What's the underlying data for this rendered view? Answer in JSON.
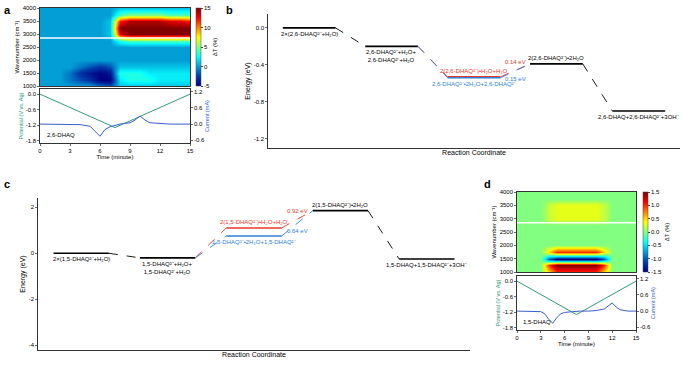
{
  "chart_data": [
    {
      "type": "heatmap",
      "panel": "a",
      "ylabel": "Wavenumber (cm⁻¹)",
      "tick_labels": "y",
      "xlim": [
        0,
        15
      ],
      "ylim": [
        1000,
        4000
      ],
      "yticks": [
        1000,
        1500,
        2000,
        2500,
        3000,
        3500,
        4000
      ],
      "x": [
        0,
        1,
        2,
        3,
        4,
        5,
        6,
        7,
        8,
        9,
        10,
        11,
        12,
        13,
        14,
        15
      ],
      "y": [
        1000,
        1250,
        1500,
        1750,
        2000,
        2250,
        2500,
        2750,
        3000,
        3250,
        3500,
        3750,
        4000
      ],
      "z": [
        [
          0,
          0,
          0,
          0,
          0,
          0,
          -1,
          -2,
          1,
          1,
          1,
          1,
          1,
          1,
          1,
          1
        ],
        [
          0,
          0,
          0,
          -1,
          -2,
          -3,
          -5,
          -5,
          2,
          3,
          3,
          3,
          2,
          2,
          2,
          2
        ],
        [
          0,
          0,
          0,
          -1,
          -3,
          -4,
          -5,
          -4,
          3,
          3,
          3,
          2,
          2,
          2,
          2,
          2
        ],
        [
          0,
          0,
          0,
          0,
          -1,
          -2,
          -3,
          -2,
          1,
          1,
          1,
          1,
          1,
          1,
          1,
          1
        ],
        [
          0,
          0,
          0,
          0,
          0,
          0,
          0,
          0,
          0,
          0,
          0,
          0,
          0,
          0,
          0,
          0
        ],
        [
          0,
          0,
          0,
          0,
          0,
          0,
          0,
          0,
          0,
          0,
          0,
          0,
          0,
          0,
          0,
          0
        ],
        [
          0,
          0,
          0,
          0,
          0,
          0,
          0,
          0,
          0,
          0,
          0,
          0,
          0,
          0,
          0,
          0
        ],
        [
          0,
          0,
          0,
          0,
          0,
          0,
          0,
          0,
          3,
          4,
          4,
          4,
          4,
          4,
          4,
          4
        ],
        [
          0,
          0,
          0,
          0,
          0,
          0,
          0,
          1,
          13,
          15,
          15,
          15,
          15,
          15,
          15,
          15
        ],
        [
          0,
          0,
          0,
          0,
          0,
          0,
          0,
          1,
          15,
          15,
          15,
          15,
          15,
          15,
          15,
          15
        ],
        [
          0,
          0,
          0,
          0,
          0,
          0,
          0,
          1,
          12,
          14,
          14,
          14,
          14,
          13,
          13,
          12
        ],
        [
          0,
          0,
          0,
          0,
          0,
          0,
          0,
          0,
          4,
          5,
          5,
          5,
          5,
          4,
          4,
          4
        ],
        [
          0,
          0,
          0,
          0,
          0,
          0,
          0,
          0,
          1,
          1,
          1,
          1,
          1,
          1,
          1,
          1
        ]
      ],
      "colorbar": {
        "title": "ΔT (%)",
        "range": [
          -5,
          15
        ],
        "ticks": [
          -5,
          0,
          5,
          10,
          15
        ]
      },
      "reference_line": 2850
    },
    {
      "type": "line",
      "annotation": "2,6-DHAQ",
      "xlabel": "Time (minute)",
      "xlim": [
        0,
        15
      ],
      "xticks": [
        0,
        3,
        6,
        9,
        12,
        15
      ],
      "ylabel": "Potential (V vs. Ag)",
      "ylim": [
        -1.9,
        0.2
      ],
      "yticks": [
        {
          "value": 0,
          "label": "0.0"
        },
        -0.6,
        -1.2,
        -1.8
      ],
      "y2label": "Current (mA)",
      "y2lim": [
        -0.7,
        1.3
      ],
      "y2ticks": [
        1.2,
        0.6,
        {
          "value": 0,
          "label": "0.0"
        },
        -0.6
      ],
      "series": [
        {
          "color": "#2e9a7e",
          "x": [
            0,
            7.5,
            15
          ],
          "values": [
            0,
            -1.3,
            0
          ]
        },
        {
          "color": "#3a5fcd",
          "axis": "y2",
          "x": [
            0,
            1,
            2,
            3,
            4,
            5,
            5.5,
            6,
            6.5,
            7,
            7.5,
            8,
            9,
            9.5,
            10,
            10.5,
            11,
            12,
            13,
            14,
            15
          ],
          "values": [
            0,
            0,
            0,
            0,
            -0.02,
            -0.08,
            -0.25,
            -0.45,
            -0.2,
            -0.1,
            -0.05,
            0,
            0.05,
            0.15,
            0.3,
            0.15,
            0.05,
            0.02,
            0,
            0,
            0
          ]
        }
      ]
    },
    {
      "type": "energy_diagram",
      "panel": "b",
      "xlabel": "Reaction Coordinate",
      "ylabel": "Energy (eV)",
      "tick_labels": "y",
      "ylim": [
        -1.3,
        0.15
      ],
      "yticks": [
        {
          "value": 0,
          "label": "0.0"
        },
        -0.4,
        -0.8,
        -1.2
      ],
      "steps": [
        [
          {
            "label": [
              "2×(2,6-DHAQ²⁻+H₂O)"
            ],
            "energy": 0,
            "color": "#000000"
          }
        ],
        [
          {
            "label": [
              "2,6-DHAQ²⁻+H₂O+",
              "2,6-DHAQ²⁻+H₂O"
            ],
            "energy": -0.2,
            "color": "#000000"
          }
        ],
        [
          {
            "label": [
              "2(2,6-DHAQ²⁻)•H₂O+H₂O"
            ],
            "energy": -0.53,
            "color": "#e8392b",
            "barrier": "0.14 eV"
          },
          {
            "label": [
              "2,6-DHAQ²⁻•2H₂O+2,6-DHAQ²⁻"
            ],
            "energy": -0.54,
            "color": "#2f7fd6",
            "barrier": "0.15 eV"
          }
        ],
        [
          {
            "label": [
              "2(2,6-DHAQ²⁻)•2H₂O"
            ],
            "energy": -0.39,
            "color": "#000000"
          }
        ],
        [
          {
            "label": [
              "2,6-DHAQ+2,6-DHAQ²⁻+3OH⁻"
            ],
            "energy": -0.9,
            "color": "#000000"
          }
        ]
      ]
    },
    {
      "type": "energy_diagram",
      "panel": "c",
      "xlabel": "Reaction Coordinate",
      "ylabel": "Energy (eV)",
      "tick_labels": "y",
      "ylim": [
        -4.2,
        2.4
      ],
      "yticks": [
        -4,
        -2,
        0,
        2
      ],
      "steps": [
        [
          {
            "label": [
              "2×(1,5-DHAQ²⁻+H₂O)"
            ],
            "energy": 0,
            "color": "#000000"
          }
        ],
        [
          {
            "label": [
              "1,5-DHAQ²⁻+H₂O+",
              "1,5-DHAQ²⁻+H₂O"
            ],
            "energy": -0.2,
            "color": "#000000"
          }
        ],
        [
          {
            "label": [
              "2(1,5-DHAQ²⁻)•H₂O+H₂O"
            ],
            "energy": 1.1,
            "color": "#e8392b",
            "barrier": "0.92 eV"
          },
          {
            "label": [
              "1,5-DHAQ²⁻•2H₂O+1,5-DHAQ²⁻"
            ],
            "energy": 0.75,
            "color": "#2f7fd6",
            "barrier": "0.64 eV"
          }
        ],
        [
          {
            "label": [
              "2(1,5-DHAQ²⁻)•2H₂O"
            ],
            "energy": 1.85,
            "color": "#000000"
          }
        ],
        [
          {
            "label": [
              "1,5-DHAQ+1,5-DHAQ²⁻+3OH⁻"
            ],
            "energy": -0.25,
            "color": "#000000"
          }
        ]
      ]
    },
    {
      "type": "heatmap",
      "panel": "d",
      "ylabel": "Wavenumber (cm⁻¹)",
      "tick_labels": "y",
      "xlim": [
        0,
        15
      ],
      "ylim": [
        1000,
        4000
      ],
      "yticks": [
        1000,
        1500,
        2000,
        2500,
        3000,
        3500,
        4000
      ],
      "x": [
        0,
        1,
        2,
        3,
        4,
        5,
        6,
        7,
        8,
        9,
        10,
        11,
        12,
        13,
        14,
        15
      ],
      "y": [
        1000,
        1250,
        1500,
        1750,
        2000,
        2250,
        2500,
        2750,
        3000,
        3250,
        3500,
        3750,
        4000
      ],
      "z": [
        [
          0,
          0,
          0,
          0,
          0.5,
          1,
          1,
          1,
          1,
          1,
          1,
          0.5,
          0,
          0,
          0,
          0
        ],
        [
          0,
          0,
          0,
          0,
          1,
          1.5,
          1.5,
          1.5,
          1.5,
          1.5,
          1.5,
          1,
          0,
          0,
          0,
          0
        ],
        [
          0,
          0,
          0,
          0,
          -1,
          -1.5,
          -1.5,
          -1.5,
          -1.5,
          -1.5,
          -1.5,
          -1,
          0,
          0,
          0,
          0
        ],
        [
          0,
          0,
          0,
          0,
          0.5,
          1,
          1,
          1,
          1,
          1,
          1,
          0.5,
          0,
          0,
          0,
          0
        ],
        [
          0,
          0,
          0,
          0,
          0,
          0,
          0,
          0,
          0,
          0,
          0,
          0,
          0,
          0,
          0,
          0
        ],
        [
          0,
          0,
          0,
          0,
          0,
          0,
          0,
          0,
          0,
          0,
          0,
          0,
          0,
          0,
          0,
          0
        ],
        [
          0,
          0,
          0,
          0,
          0,
          0,
          0,
          0,
          0,
          0,
          0,
          0,
          0,
          0,
          0,
          0
        ],
        [
          0,
          0,
          0,
          0,
          0,
          0,
          0,
          0,
          0,
          0,
          0,
          0,
          0,
          0,
          0,
          0
        ],
        [
          0,
          0,
          0,
          0,
          0.2,
          0.3,
          0.3,
          0.3,
          0.3,
          0.3,
          0.3,
          0.2,
          0,
          0,
          0,
          0
        ],
        [
          0,
          0,
          0,
          0,
          0.2,
          0.3,
          0.3,
          0.3,
          0.3,
          0.3,
          0.3,
          0.2,
          0,
          0,
          0,
          0
        ],
        [
          0,
          0,
          0,
          0,
          0.2,
          0.3,
          0.3,
          0.3,
          0.3,
          0.3,
          0.3,
          0.2,
          0,
          0,
          0,
          0
        ],
        [
          0,
          0,
          0,
          0,
          0,
          0,
          0,
          0,
          0,
          0,
          0,
          0,
          0,
          0,
          0,
          0
        ],
        [
          0,
          0,
          0,
          0,
          0,
          0,
          0,
          0,
          0,
          0,
          0,
          0,
          0,
          0,
          0,
          0
        ]
      ],
      "colorbar": {
        "title": "ΔT (%)",
        "range": [
          -1.5,
          1.5
        ],
        "ticks": [
          -1.5,
          {
            "value": -1,
            "label": "-1.0"
          },
          -0.5,
          {
            "value": 0,
            "label": "0.0"
          },
          0.5,
          {
            "value": 1,
            "label": "1.0"
          },
          1.5
        ]
      },
      "reference_line": 2850
    },
    {
      "type": "line",
      "annotation": "1,5-DHAQ",
      "xlabel": "Time (minute)",
      "xlim": [
        0,
        15
      ],
      "xticks": [
        0,
        3,
        6,
        9,
        12,
        15
      ],
      "ylabel": "Potential (V vs. Ag)",
      "ylim": [
        -1.9,
        0.2
      ],
      "yticks": [
        {
          "value": 0,
          "label": "0.0"
        },
        -0.6,
        -1.2,
        -1.8
      ],
      "y2label": "Current (mA)",
      "y2lim": [
        -0.7,
        1.3
      ],
      "y2ticks": [
        1.2,
        0.6,
        {
          "value": 0,
          "label": "0.0"
        },
        -0.6
      ],
      "series": [
        {
          "color": "#2e9a7e",
          "x": [
            0,
            7.5,
            15
          ],
          "values": [
            0,
            -1.3,
            0
          ]
        },
        {
          "color": "#3a5fcd",
          "axis": "y2",
          "x": [
            0,
            1,
            2,
            3,
            3.5,
            4,
            4.5,
            5,
            5.5,
            6,
            7,
            7.5,
            8,
            9,
            10,
            11,
            11.5,
            12,
            12.5,
            13,
            14,
            15
          ],
          "values": [
            0,
            0,
            0,
            -0.02,
            -0.1,
            -0.3,
            -0.45,
            -0.25,
            -0.1,
            -0.05,
            -0.02,
            0,
            0,
            0,
            0.02,
            0.08,
            0.2,
            0.3,
            0.15,
            0.05,
            0,
            0
          ]
        }
      ]
    }
  ]
}
